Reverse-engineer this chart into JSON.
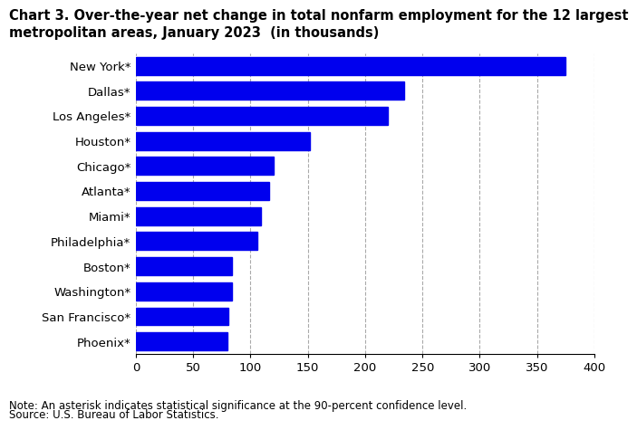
{
  "title_line1": "Chart 3. Over-the-year net change in total nonfarm employment for the 12 largest",
  "title_line2": "metropolitan areas, January 2023  (in thousands)",
  "categories": [
    "Phoenix*",
    "San Francisco*",
    "Washington*",
    "Boston*",
    "Philadelphia*",
    "Miami*",
    "Atlanta*",
    "Chicago*",
    "Houston*",
    "Los Angeles*",
    "Dallas*",
    "New York*"
  ],
  "values": [
    80,
    81,
    84,
    84,
    106,
    109,
    116,
    120,
    152,
    220,
    234,
    375
  ],
  "bar_color": "#0000EE",
  "xlim": [
    0,
    400
  ],
  "xticks": [
    0,
    50,
    100,
    150,
    200,
    250,
    300,
    350,
    400
  ],
  "grid_color": "#aaaaaa",
  "note_line1": "Note: An asterisk indicates statistical significance at the 90-percent confidence level.",
  "note_line2": "Source: U.S. Bureau of Labor Statistics.",
  "title_fontsize": 10.5,
  "tick_fontsize": 9.5,
  "note_fontsize": 8.5,
  "background_color": "#ffffff",
  "bar_height": 0.72
}
